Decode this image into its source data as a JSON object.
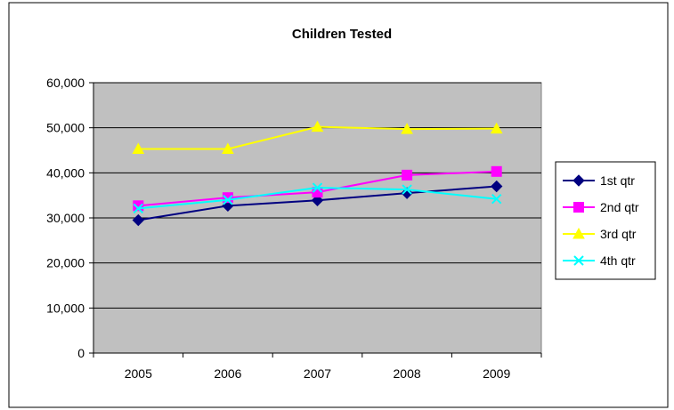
{
  "chart_data": {
    "type": "line",
    "title": "Children Tested",
    "xlabel": "",
    "ylabel": "",
    "categories": [
      "2005",
      "2006",
      "2007",
      "2008",
      "2009"
    ],
    "ylim": [
      0,
      60000
    ],
    "y_ticks": [
      0,
      10000,
      20000,
      30000,
      40000,
      50000,
      60000
    ],
    "y_tick_labels": [
      "0",
      "10,000",
      "20,000",
      "30,000",
      "40,000",
      "50,000",
      "60,000"
    ],
    "grid": true,
    "legend_position": "right",
    "plot_background": "#c0c0c0",
    "series": [
      {
        "name": "1st qtr",
        "values": [
          29500,
          32700,
          33900,
          35500,
          37000
        ],
        "color": "#000080",
        "marker": "diamond"
      },
      {
        "name": "2nd qtr",
        "values": [
          32700,
          34500,
          35700,
          39500,
          40300
        ],
        "color": "#ff00ff",
        "marker": "square"
      },
      {
        "name": "3rd qtr",
        "values": [
          45300,
          45300,
          50200,
          49700,
          49800
        ],
        "color": "#ffff00",
        "marker": "triangle"
      },
      {
        "name": "4th qtr",
        "values": [
          32100,
          34000,
          36700,
          36300,
          34200
        ],
        "color": "#00ffff",
        "marker": "x"
      }
    ]
  }
}
